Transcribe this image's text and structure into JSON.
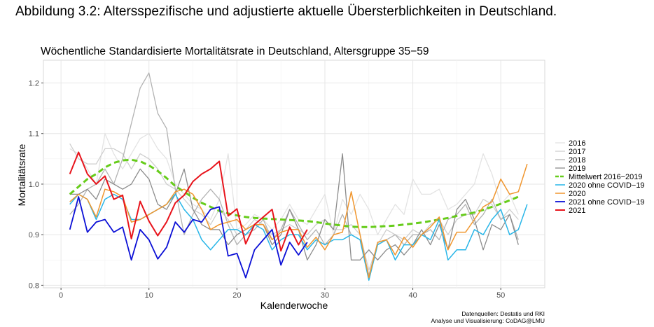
{
  "figure_title": "Abbildung 3.2: Altersspezifische und adjustierte aktuelle Übersterblichkeiten in Deutschland.",
  "chart_data": {
    "type": "line",
    "title": "Wöchentliche Standardisierte Mortalitätsrate in Deutschland, Altersgruppe 35−59",
    "xlabel": "Kalenderwoche",
    "ylabel": "Mortalitätsrate",
    "xlim": [
      -2,
      55
    ],
    "ylim": [
      0.795,
      1.245
    ],
    "xticks": [
      0,
      10,
      20,
      30,
      40,
      50
    ],
    "yticks": [
      0.8,
      0.9,
      1.0,
      1.1,
      1.2
    ],
    "ytick_labels": [
      "0.8",
      "0.9",
      "1.0",
      "1.1",
      "1.2"
    ],
    "grid": true,
    "legend_position": "right",
    "series": [
      {
        "name": "2016",
        "color": "#e3e3e3",
        "width": 1.3,
        "dash": "",
        "x": [
          1,
          2,
          3,
          4,
          5,
          6,
          7,
          8,
          9,
          10,
          11,
          12,
          13,
          14,
          15,
          16,
          17,
          18,
          19,
          20,
          21,
          22,
          23,
          24,
          25,
          26,
          27,
          28,
          29,
          30,
          31,
          32,
          33,
          34,
          35,
          36,
          37,
          38,
          39,
          40,
          41,
          42,
          43,
          44,
          45,
          46,
          47,
          48,
          49,
          50,
          51,
          52
        ],
        "values": [
          1.07,
          1.06,
          1.03,
          1.0,
          1.1,
          1.06,
          1.03,
          1.06,
          1.09,
          1.1,
          1.07,
          1.05,
          1.0,
          0.98,
          0.96,
          0.95,
          0.93,
          0.97,
          1.06,
          0.91,
          0.92,
          0.94,
          0.93,
          0.91,
          0.93,
          0.96,
          0.93,
          0.92,
          0.95,
          0.98,
          0.9,
          0.97,
          0.94,
          0.98,
          0.95,
          0.9,
          0.93,
          0.96,
          0.94,
          1.01,
          0.98,
          0.98,
          0.99,
          0.95,
          0.96,
          0.98,
          1.0,
          1.06,
          1.02,
          0.96,
          0.98,
          0.94
        ]
      },
      {
        "name": "2017",
        "color": "#cfcfcf",
        "width": 1.3,
        "dash": "",
        "x": [
          1,
          2,
          3,
          4,
          5,
          6,
          7,
          8,
          9,
          10,
          11,
          12,
          13,
          14,
          15,
          16,
          17,
          18,
          19,
          20,
          21,
          22,
          23,
          24,
          25,
          26,
          27,
          28,
          29,
          30,
          31,
          32,
          33,
          34,
          35,
          36,
          37,
          38,
          39,
          40,
          41,
          42,
          43,
          44,
          45,
          46,
          47,
          48,
          49,
          50,
          51,
          52
        ],
        "values": [
          1.08,
          1.05,
          1.04,
          1.04,
          1.07,
          1.07,
          1.06,
          1.03,
          1.06,
          1.05,
          1.03,
          1.0,
          0.99,
          0.97,
          0.95,
          0.94,
          0.92,
          0.95,
          0.93,
          0.9,
          0.91,
          0.93,
          0.92,
          0.9,
          0.91,
          0.92,
          0.91,
          0.9,
          0.92,
          0.93,
          0.91,
          0.91,
          0.92,
          0.9,
          0.83,
          0.88,
          0.91,
          0.9,
          0.89,
          0.91,
          0.9,
          0.92,
          0.93,
          0.9,
          0.93,
          0.94,
          0.94,
          0.97,
          0.96,
          0.93,
          0.95,
          0.93
        ]
      },
      {
        "name": "2018",
        "color": "#b3b3b3",
        "width": 1.3,
        "dash": "",
        "x": [
          1,
          2,
          3,
          4,
          5,
          6,
          7,
          8,
          9,
          10,
          11,
          12,
          13,
          14,
          15,
          16,
          17,
          18,
          19,
          20,
          21,
          22,
          23,
          24,
          25,
          26,
          27,
          28,
          29,
          30,
          31,
          32,
          33,
          34,
          35,
          36,
          37,
          38,
          39,
          40,
          41,
          42,
          43,
          44,
          45,
          46,
          47,
          48,
          49,
          50,
          51,
          52
        ],
        "values": [
          0.94,
          0.96,
          0.99,
          1.0,
          1.03,
          1.0,
          1.05,
          1.12,
          1.19,
          1.22,
          1.14,
          1.11,
          0.99,
          0.9,
          0.94,
          0.97,
          0.99,
          0.97,
          0.92,
          0.88,
          0.9,
          0.91,
          0.93,
          0.89,
          0.91,
          0.95,
          0.92,
          0.89,
          0.91,
          0.88,
          0.9,
          0.94,
          0.9,
          0.89,
          0.82,
          0.88,
          0.89,
          0.9,
          0.88,
          0.9,
          0.9,
          0.91,
          0.89,
          0.93,
          0.94,
          0.96,
          0.92,
          0.94,
          0.97,
          0.93,
          0.94,
          0.89
        ]
      },
      {
        "name": "2019",
        "color": "#8c8c8c",
        "width": 1.3,
        "dash": "",
        "x": [
          1,
          2,
          3,
          4,
          5,
          6,
          7,
          8,
          9,
          10,
          11,
          12,
          13,
          14,
          15,
          16,
          17,
          18,
          19,
          20,
          21,
          22,
          23,
          24,
          25,
          26,
          27,
          28,
          29,
          30,
          31,
          32,
          33,
          34,
          35,
          36,
          37,
          38,
          39,
          40,
          41,
          42,
          43,
          44,
          45,
          46,
          47,
          48,
          49,
          50,
          51,
          52
        ],
        "values": [
          0.98,
          0.98,
          0.99,
          0.97,
          1.01,
          1.0,
          0.99,
          1.0,
          1.03,
          1.01,
          0.96,
          0.95,
          0.98,
          1.03,
          0.95,
          0.92,
          0.91,
          0.91,
          0.88,
          0.9,
          0.91,
          0.92,
          0.92,
          0.88,
          0.9,
          0.95,
          0.91,
          0.85,
          0.88,
          0.93,
          0.91,
          1.06,
          0.85,
          0.85,
          0.87,
          0.85,
          0.87,
          0.88,
          0.86,
          0.88,
          0.91,
          0.88,
          0.92,
          0.87,
          0.95,
          0.97,
          0.93,
          0.87,
          0.92,
          0.91,
          0.94,
          0.88
        ]
      },
      {
        "name": "Mittelwert 2016−2019",
        "color": "#66cc1a",
        "width": 3,
        "dash": "8,5",
        "x": [
          1,
          2,
          3,
          4,
          5,
          6,
          7,
          8,
          9,
          10,
          11,
          12,
          13,
          14,
          15,
          16,
          17,
          18,
          19,
          20,
          21,
          22,
          23,
          24,
          25,
          26,
          27,
          28,
          29,
          30,
          31,
          32,
          33,
          34,
          35,
          36,
          37,
          38,
          39,
          40,
          41,
          42,
          43,
          44,
          45,
          46,
          47,
          48,
          49,
          50,
          51,
          52
        ],
        "values": [
          0.98,
          0.995,
          1.01,
          1.02,
          1.033,
          1.042,
          1.047,
          1.048,
          1.045,
          1.037,
          1.026,
          1.012,
          0.996,
          0.985,
          0.973,
          0.963,
          0.955,
          0.947,
          0.942,
          0.938,
          0.935,
          0.933,
          0.932,
          0.931,
          0.93,
          0.929,
          0.928,
          0.927,
          0.925,
          0.922,
          0.92,
          0.918,
          0.916,
          0.915,
          0.915,
          0.916,
          0.917,
          0.918,
          0.92,
          0.922,
          0.924,
          0.927,
          0.93,
          0.933,
          0.937,
          0.94,
          0.944,
          0.949,
          0.955,
          0.961,
          0.968,
          0.975
        ]
      },
      {
        "name": "2020 ohne COVID−19",
        "color": "#29b6e8",
        "width": 1.5,
        "dash": "",
        "x": [
          1,
          2,
          3,
          4,
          5,
          6,
          7,
          8,
          9,
          10,
          11,
          12,
          13,
          14,
          15,
          16,
          17,
          18,
          19,
          20,
          21,
          22,
          23,
          24,
          25,
          26,
          27,
          28,
          29,
          30,
          31,
          32,
          33,
          34,
          35,
          36,
          37,
          38,
          39,
          40,
          41,
          42,
          43,
          44,
          45,
          46,
          47,
          48,
          49,
          50,
          51,
          52,
          53
        ],
        "values": [
          0.96,
          0.98,
          0.97,
          0.93,
          0.97,
          0.98,
          0.97,
          0.93,
          0.93,
          0.94,
          0.95,
          0.96,
          0.98,
          0.95,
          0.93,
          0.89,
          0.87,
          0.89,
          0.91,
          0.91,
          0.9,
          0.92,
          0.91,
          0.87,
          0.89,
          0.9,
          0.9,
          0.87,
          0.89,
          0.88,
          0.89,
          0.89,
          0.9,
          0.89,
          0.81,
          0.88,
          0.89,
          0.85,
          0.88,
          0.88,
          0.9,
          0.89,
          0.93,
          0.85,
          0.87,
          0.87,
          0.91,
          0.9,
          0.93,
          0.95,
          0.9,
          0.91,
          0.96
        ]
      },
      {
        "name": "2020",
        "color": "#f0962e",
        "width": 1.5,
        "dash": "",
        "x": [
          1,
          2,
          3,
          4,
          5,
          6,
          7,
          8,
          9,
          10,
          11,
          12,
          13,
          14,
          15,
          16,
          17,
          18,
          19,
          20,
          21,
          22,
          23,
          24,
          25,
          26,
          27,
          28,
          29,
          30,
          31,
          32,
          33,
          34,
          35,
          36,
          37,
          38,
          39,
          40,
          41,
          42,
          43,
          44,
          45,
          46,
          47,
          48,
          49,
          50,
          51,
          52,
          53
        ],
        "values": [
          0.965,
          0.98,
          0.97,
          0.935,
          0.99,
          0.985,
          0.975,
          0.925,
          0.93,
          0.94,
          0.95,
          0.96,
          0.985,
          0.99,
          0.98,
          0.95,
          0.91,
          0.92,
          0.925,
          0.93,
          0.91,
          0.92,
          0.92,
          0.89,
          0.905,
          0.91,
          0.91,
          0.875,
          0.895,
          0.87,
          0.9,
          0.905,
          0.985,
          0.9,
          0.815,
          0.885,
          0.89,
          0.86,
          0.895,
          0.875,
          0.9,
          0.915,
          0.935,
          0.87,
          0.905,
          0.905,
          0.93,
          0.955,
          0.965,
          1.01,
          0.98,
          0.985,
          1.04
        ]
      },
      {
        "name": "2021 ohne COVID−19",
        "color": "#0c10d6",
        "width": 1.8,
        "dash": "",
        "x": [
          1,
          2,
          3,
          4,
          5,
          6,
          7,
          8,
          9,
          10,
          11,
          12,
          13,
          14,
          15,
          16,
          17,
          18,
          19,
          20,
          21,
          22,
          23,
          24,
          25,
          26,
          27,
          28
        ],
        "values": [
          0.91,
          0.975,
          0.905,
          0.925,
          0.93,
          0.905,
          0.915,
          0.85,
          0.91,
          0.89,
          0.852,
          0.875,
          0.925,
          0.905,
          0.93,
          0.925,
          0.95,
          0.955,
          0.858,
          0.863,
          0.815,
          0.87,
          0.89,
          0.91,
          0.84,
          0.885,
          0.86,
          0.885
        ]
      },
      {
        "name": "2021",
        "color": "#e8141c",
        "width": 2,
        "dash": "",
        "x": [
          1,
          2,
          3,
          4,
          5,
          6,
          7,
          8,
          9,
          10,
          11,
          12,
          13,
          14,
          15,
          16,
          17,
          18,
          19,
          20,
          21,
          22,
          23,
          24,
          25,
          26,
          27,
          28
        ],
        "values": [
          1.02,
          1.063,
          1.02,
          1.0,
          1.016,
          0.97,
          0.978,
          0.892,
          0.966,
          0.927,
          0.898,
          0.925,
          0.963,
          0.978,
          1.005,
          1.02,
          1.03,
          1.045,
          0.937,
          0.951,
          0.882,
          0.92,
          0.935,
          0.95,
          0.868,
          0.915,
          0.88,
          0.91
        ]
      }
    ]
  },
  "source_note": {
    "line1": "Datenquellen: Destatis und RKI",
    "line2": "Analyse und Visualisierung: CoDAG@LMU"
  }
}
